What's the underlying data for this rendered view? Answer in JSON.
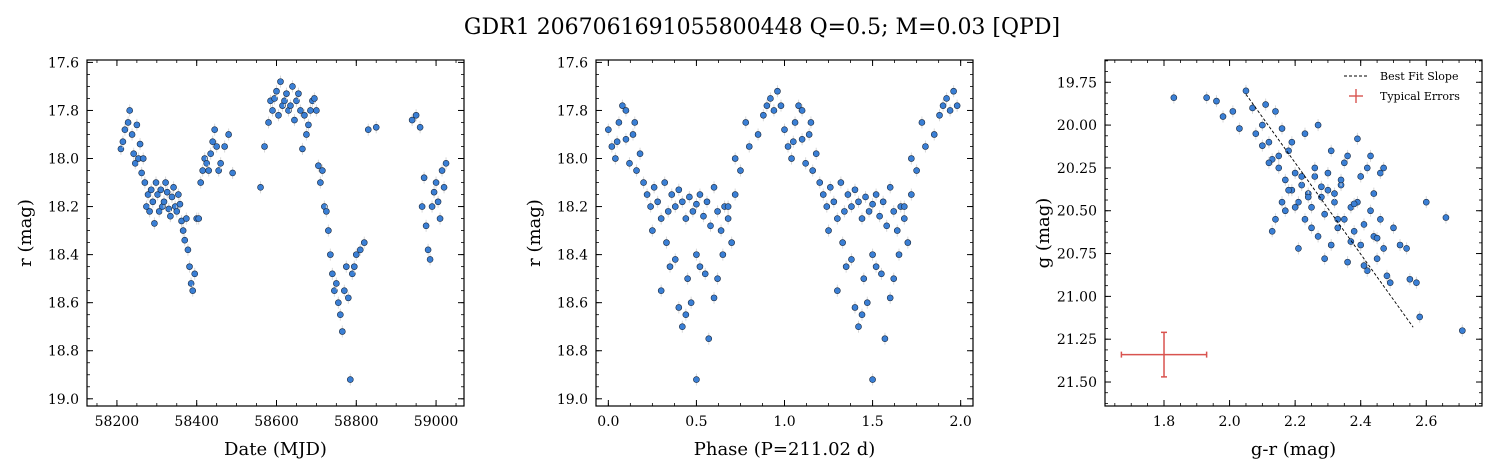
{
  "figure": {
    "title": "GDR1 2067061691055800448  Q=0.5; M=0.03 [QPD]"
  },
  "chart_data": [
    {
      "type": "scatter",
      "xlabel": "Date (MJD)",
      "ylabel": "r (mag)",
      "xlim": [
        58125,
        59070
      ],
      "ylim": [
        19.03,
        17.59
      ],
      "y_inverted": true,
      "xticks": [
        58200,
        58400,
        58600,
        58800,
        59000
      ],
      "yticks": [
        17.6,
        17.8,
        18.0,
        18.2,
        18.4,
        18.6,
        18.8,
        19.0
      ],
      "xtick_labels": [
        "58200",
        "58400",
        "58600",
        "58800",
        "59000"
      ],
      "ytick_labels": [
        "17.6",
        "17.8",
        "18.0",
        "18.2",
        "18.4",
        "18.6",
        "18.8",
        "19.0"
      ],
      "marker_color": "#3a7fd5",
      "series": [
        {
          "x": [
            58210,
            58215,
            58220,
            58228,
            58232,
            58238,
            58242,
            58246,
            58250,
            58254,
            58258,
            58262,
            58266,
            58270,
            58274,
            58278,
            58282,
            58286,
            58290,
            58294,
            58298,
            58302,
            58306,
            58310,
            58314,
            58318,
            58322,
            58326,
            58330,
            58334,
            58338,
            58342,
            58346,
            58350,
            58354,
            58358,
            58362,
            58366,
            58370,
            58374,
            58378,
            58382,
            58386,
            58390,
            58395,
            58400,
            58405,
            58410,
            58415,
            58420,
            58425,
            58430,
            58435,
            58440,
            58445,
            58450,
            58455,
            58460,
            58470,
            58480,
            58490,
            58560,
            58570,
            58580,
            58585,
            58590,
            58595,
            58600,
            58605,
            58610,
            58615,
            58620,
            58625,
            58630,
            58635,
            58640,
            58645,
            58650,
            58655,
            58660,
            58665,
            58670,
            58675,
            58680,
            58685,
            58690,
            58695,
            58700,
            58705,
            58710,
            58715,
            58720,
            58725,
            58730,
            58735,
            58740,
            58745,
            58750,
            58755,
            58760,
            58765,
            58770,
            58775,
            58780,
            58785,
            58790,
            58795,
            58800,
            58810,
            58820,
            58830,
            58850,
            58940,
            58950,
            58960,
            58965,
            58970,
            58975,
            58980,
            58985,
            58990,
            58995,
            59000,
            59005,
            59010,
            59015,
            59020,
            59025
          ],
          "y": [
            17.96,
            17.93,
            17.88,
            17.85,
            17.8,
            17.9,
            17.98,
            18.02,
            17.86,
            18.0,
            17.94,
            18.06,
            18.0,
            18.1,
            18.2,
            18.15,
            18.22,
            18.13,
            18.18,
            18.27,
            18.1,
            18.15,
            18.22,
            18.13,
            18.2,
            18.18,
            18.1,
            18.14,
            18.21,
            18.24,
            18.16,
            18.12,
            18.2,
            18.22,
            18.15,
            18.19,
            18.26,
            18.3,
            18.34,
            18.25,
            18.38,
            18.45,
            18.52,
            18.55,
            18.48,
            18.25,
            18.25,
            18.1,
            18.05,
            18.0,
            18.02,
            18.05,
            17.98,
            17.93,
            17.88,
            17.95,
            18.05,
            18.02,
            17.95,
            17.9,
            18.06,
            18.12,
            17.95,
            17.85,
            17.76,
            17.8,
            17.75,
            17.72,
            17.82,
            17.68,
            17.78,
            17.76,
            17.73,
            17.8,
            17.78,
            17.7,
            17.84,
            17.76,
            17.73,
            17.8,
            17.96,
            17.82,
            17.9,
            17.86,
            17.8,
            17.76,
            17.75,
            17.8,
            18.03,
            18.1,
            18.05,
            18.2,
            18.22,
            18.3,
            18.4,
            18.48,
            18.55,
            18.52,
            18.6,
            18.65,
            18.72,
            18.55,
            18.45,
            18.58,
            18.92,
            18.48,
            18.45,
            18.4,
            18.38,
            18.35,
            17.88,
            17.87,
            17.84,
            17.82,
            17.87,
            18.2,
            18.08,
            18.28,
            18.38,
            18.42,
            18.2,
            18.14,
            18.1,
            18.18,
            18.25,
            18.05,
            18.12,
            18.02
          ]
        }
      ]
    },
    {
      "type": "scatter",
      "xlabel": "Phase (P=211.02 d)",
      "ylabel": "r (mag)",
      "xlim": [
        -0.07,
        2.07
      ],
      "ylim": [
        19.03,
        17.59
      ],
      "y_inverted": true,
      "xticks": [
        0.0,
        0.5,
        1.0,
        1.5,
        2.0
      ],
      "yticks": [
        17.6,
        17.8,
        18.0,
        18.2,
        18.4,
        18.6,
        18.8,
        19.0
      ],
      "xtick_labels": [
        "0.0",
        "0.5",
        "1.0",
        "1.5",
        "2.0"
      ],
      "ytick_labels": [
        "17.6",
        "17.8",
        "18.0",
        "18.2",
        "18.4",
        "18.6",
        "18.8",
        "19.0"
      ],
      "marker_color": "#3a7fd5",
      "series": [
        {
          "x": [
            0.0,
            0.02,
            0.04,
            0.06,
            0.08,
            0.1,
            0.12,
            0.14,
            0.16,
            0.18,
            0.2,
            0.22,
            0.24,
            0.26,
            0.28,
            0.3,
            0.32,
            0.34,
            0.36,
            0.38,
            0.4,
            0.42,
            0.44,
            0.46,
            0.48,
            0.5,
            0.52,
            0.54,
            0.56,
            0.58,
            0.6,
            0.62,
            0.64,
            0.66,
            0.68,
            0.7,
            0.72,
            0.75,
            0.8,
            0.85,
            0.88,
            0.9,
            0.92,
            0.94,
            0.96,
            0.98,
            0.3,
            0.35,
            0.4,
            0.45,
            0.5,
            0.55,
            0.6,
            0.65,
            0.42,
            0.47,
            0.52,
            0.57,
            0.62,
            0.5,
            0.1,
            0.15,
            0.05,
            0.25,
            0.33,
            0.38,
            0.44,
            0.68,
            0.72,
            0.78,
            1.0,
            1.02,
            1.04,
            1.06,
            1.08,
            1.1,
            1.12,
            1.14,
            1.16,
            1.18,
            1.2,
            1.22,
            1.24,
            1.26,
            1.28,
            1.3,
            1.32,
            1.34,
            1.36,
            1.38,
            1.4,
            1.42,
            1.44,
            1.46,
            1.48,
            1.5,
            1.52,
            1.54,
            1.56,
            1.58,
            1.6,
            1.62,
            1.64,
            1.66,
            1.68,
            1.7,
            1.72,
            1.75,
            1.8,
            1.85,
            1.88,
            1.9,
            1.92,
            1.94,
            1.96,
            1.98,
            1.3,
            1.35,
            1.4,
            1.45,
            1.5,
            1.55,
            1.6,
            1.65,
            1.42,
            1.47,
            1.52,
            1.57,
            1.62,
            1.5,
            1.1,
            1.15,
            1.05,
            1.25,
            1.33,
            1.38,
            1.44,
            1.68,
            1.72,
            1.78
          ],
          "y": [
            17.88,
            17.95,
            18.0,
            17.85,
            17.78,
            17.92,
            18.02,
            17.9,
            18.05,
            17.98,
            18.1,
            18.15,
            18.2,
            18.12,
            18.18,
            18.25,
            18.1,
            18.22,
            18.15,
            18.2,
            18.13,
            18.18,
            18.25,
            18.16,
            18.22,
            18.19,
            18.15,
            18.24,
            18.18,
            18.28,
            18.12,
            18.22,
            18.3,
            18.2,
            18.25,
            18.35,
            18.15,
            18.05,
            17.95,
            17.9,
            17.82,
            17.78,
            17.75,
            17.8,
            17.72,
            17.78,
            18.55,
            18.45,
            18.62,
            18.5,
            18.92,
            18.48,
            18.58,
            18.4,
            18.7,
            18.6,
            18.45,
            18.75,
            18.5,
            18.4,
            17.8,
            17.85,
            17.93,
            18.3,
            18.35,
            18.42,
            18.65,
            18.2,
            18.0,
            17.85,
            17.88,
            17.95,
            18.0,
            17.85,
            17.78,
            17.92,
            18.02,
            17.9,
            18.05,
            17.98,
            18.1,
            18.15,
            18.2,
            18.12,
            18.18,
            18.25,
            18.1,
            18.22,
            18.15,
            18.2,
            18.13,
            18.18,
            18.25,
            18.16,
            18.22,
            18.19,
            18.15,
            18.24,
            18.18,
            18.28,
            18.12,
            18.22,
            18.3,
            18.2,
            18.25,
            18.35,
            18.15,
            18.05,
            17.95,
            17.9,
            17.82,
            17.78,
            17.75,
            17.8,
            17.72,
            17.78,
            18.55,
            18.45,
            18.62,
            18.5,
            18.92,
            18.48,
            18.58,
            18.4,
            18.7,
            18.6,
            18.45,
            18.75,
            18.5,
            18.4,
            17.8,
            17.85,
            17.93,
            18.3,
            18.35,
            18.42,
            18.65,
            18.2,
            18.0,
            17.85
          ]
        }
      ]
    },
    {
      "type": "scatter",
      "xlabel": "g-r (mag)",
      "ylabel": "g (mag)",
      "xlim": [
        1.62,
        2.77
      ],
      "ylim": [
        21.64,
        19.62
      ],
      "y_inverted": true,
      "xticks": [
        1.8,
        2.0,
        2.2,
        2.4,
        2.6
      ],
      "yticks": [
        19.75,
        20.0,
        20.25,
        20.5,
        20.75,
        21.0,
        21.25,
        21.5
      ],
      "xtick_labels": [
        "1.8",
        "2.0",
        "2.2",
        "2.4",
        "2.6"
      ],
      "ytick_labels": [
        "19.75",
        "20.00",
        "20.25",
        "20.50",
        "20.75",
        "21.00",
        "21.25",
        "21.50"
      ],
      "marker_color": "#3a7fd5",
      "legend_position": "top-right",
      "legend": [
        "Best Fit Slope",
        "Typical Errors"
      ],
      "best_fit_line": {
        "x": [
          2.05,
          2.56
        ],
        "y": [
          19.82,
          21.18
        ],
        "color": "#000000"
      },
      "typical_error": {
        "x": 1.8,
        "y": 21.34,
        "xerr": 0.13,
        "yerr": 0.13,
        "color": "#d9534f"
      },
      "series": [
        {
          "x": [
            1.83,
            1.93,
            1.96,
            1.98,
            2.01,
            2.03,
            2.05,
            2.07,
            2.08,
            2.1,
            2.11,
            2.12,
            2.13,
            2.14,
            2.15,
            2.16,
            2.17,
            2.18,
            2.19,
            2.2,
            2.21,
            2.22,
            2.23,
            2.24,
            2.25,
            2.26,
            2.27,
            2.28,
            2.29,
            2.3,
            2.31,
            2.32,
            2.33,
            2.34,
            2.35,
            2.36,
            2.37,
            2.38,
            2.39,
            2.4,
            2.41,
            2.42,
            2.43,
            2.44,
            2.45,
            2.46,
            2.47,
            2.48,
            2.5,
            2.52,
            2.55,
            2.57,
            2.6,
            2.66,
            2.71,
            2.14,
            2.16,
            2.18,
            2.2,
            2.22,
            2.24,
            2.26,
            2.28,
            2.3,
            2.32,
            2.34,
            2.36,
            2.38,
            2.4,
            2.42,
            2.44,
            2.46,
            2.1,
            2.12,
            2.15,
            2.19,
            2.23,
            2.27,
            2.31,
            2.35,
            2.39,
            2.43,
            2.47,
            2.13,
            2.17,
            2.21,
            2.25,
            2.29,
            2.33,
            2.37,
            2.41,
            2.45,
            2.49,
            2.54,
            2.58
          ],
          "y": [
            19.84,
            19.84,
            19.86,
            19.95,
            19.92,
            20.02,
            19.8,
            19.9,
            20.05,
            20.0,
            19.88,
            20.1,
            20.2,
            19.92,
            20.25,
            20.02,
            20.32,
            20.15,
            20.38,
            20.28,
            20.45,
            20.35,
            20.55,
            20.4,
            20.48,
            20.3,
            20.65,
            20.42,
            20.52,
            20.38,
            20.7,
            20.45,
            20.6,
            20.35,
            20.55,
            20.8,
            20.48,
            20.62,
            20.45,
            20.7,
            20.58,
            20.85,
            20.5,
            20.65,
            20.78,
            20.55,
            20.72,
            20.88,
            20.6,
            20.7,
            20.9,
            20.92,
            20.45,
            20.54,
            21.2,
            20.55,
            20.45,
            20.38,
            20.48,
            20.3,
            20.42,
            20.25,
            20.36,
            20.28,
            20.4,
            20.32,
            20.18,
            20.46,
            20.3,
            20.25,
            20.4,
            20.28,
            20.12,
            20.22,
            20.18,
            20.1,
            20.05,
            20.0,
            20.15,
            20.22,
            20.08,
            20.18,
            20.25,
            20.62,
            20.5,
            20.72,
            20.6,
            20.78,
            20.55,
            20.68,
            20.82,
            20.66,
            20.92,
            20.72,
            21.12
          ]
        }
      ]
    }
  ]
}
